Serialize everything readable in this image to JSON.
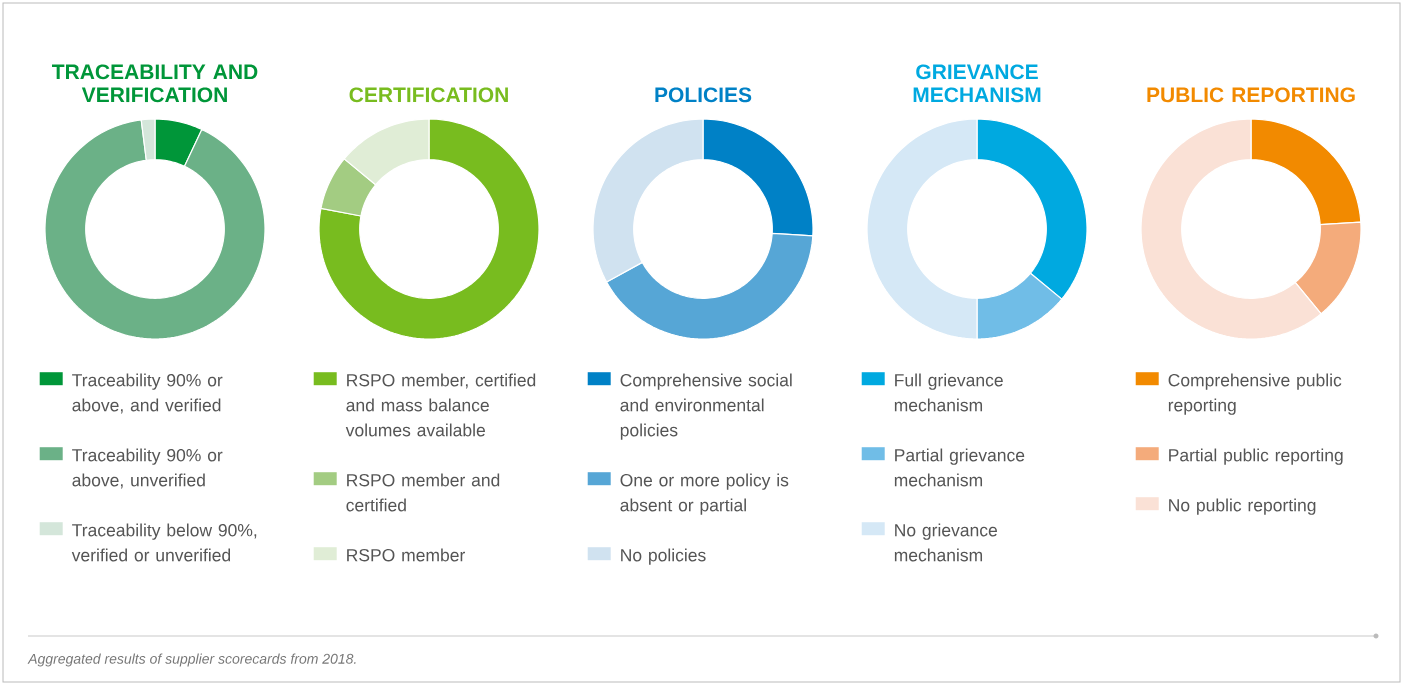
{
  "chart_data": [
    {
      "type": "donut",
      "title": "TRACEABILITY AND VERIFICATION",
      "legend": "bottom",
      "categories": [
        "Traceability 90% or above, and verified",
        "Traceability 90% or above, unverified",
        "Traceability below 90%, verified or unverified"
      ],
      "values": [
        7,
        91,
        2
      ],
      "colors": [
        "#009639",
        "#6bb187",
        "#d4e6da"
      ],
      "annotations": [
        "Aggregated results of supplier scorecards from 2018."
      ]
    },
    {
      "type": "donut",
      "title": "CERTIFICATION",
      "legend": "bottom",
      "categories": [
        "RSPO member, certified and mass balance volumes available",
        "RSPO member and certified",
        "RSPO member"
      ],
      "values": [
        78,
        8,
        14
      ],
      "colors": [
        "#78bc1f",
        "#a3cc82",
        "#e0edd6"
      ]
    },
    {
      "type": "donut",
      "title": "POLICIES",
      "legend": "bottom",
      "categories": [
        "Comprehensive social and environmental policies",
        "One or more policy is absent or partial",
        "No policies"
      ],
      "values": [
        26,
        41,
        33
      ],
      "colors": [
        "#0081c6",
        "#56a6d6",
        "#d0e2f0"
      ]
    },
    {
      "type": "donut",
      "title": "GRIEVANCE MECHANISM",
      "legend": "bottom",
      "categories": [
        "Full grievance mechanism",
        "Partial grievance mechanism",
        "No grievance mechanism"
      ],
      "values": [
        36,
        14,
        50
      ],
      "colors": [
        "#00a9e0",
        "#70bde7",
        "#d5e8f6"
      ]
    },
    {
      "type": "donut",
      "title": "PUBLIC REPORTING",
      "legend": "bottom",
      "categories": [
        "Comprehensive public reporting",
        "Partial public reporting",
        "No public reporting"
      ],
      "values": [
        24,
        15,
        61
      ],
      "colors": [
        "#f28a00",
        "#f4ab7b",
        "#fae1d6"
      ]
    }
  ]
}
